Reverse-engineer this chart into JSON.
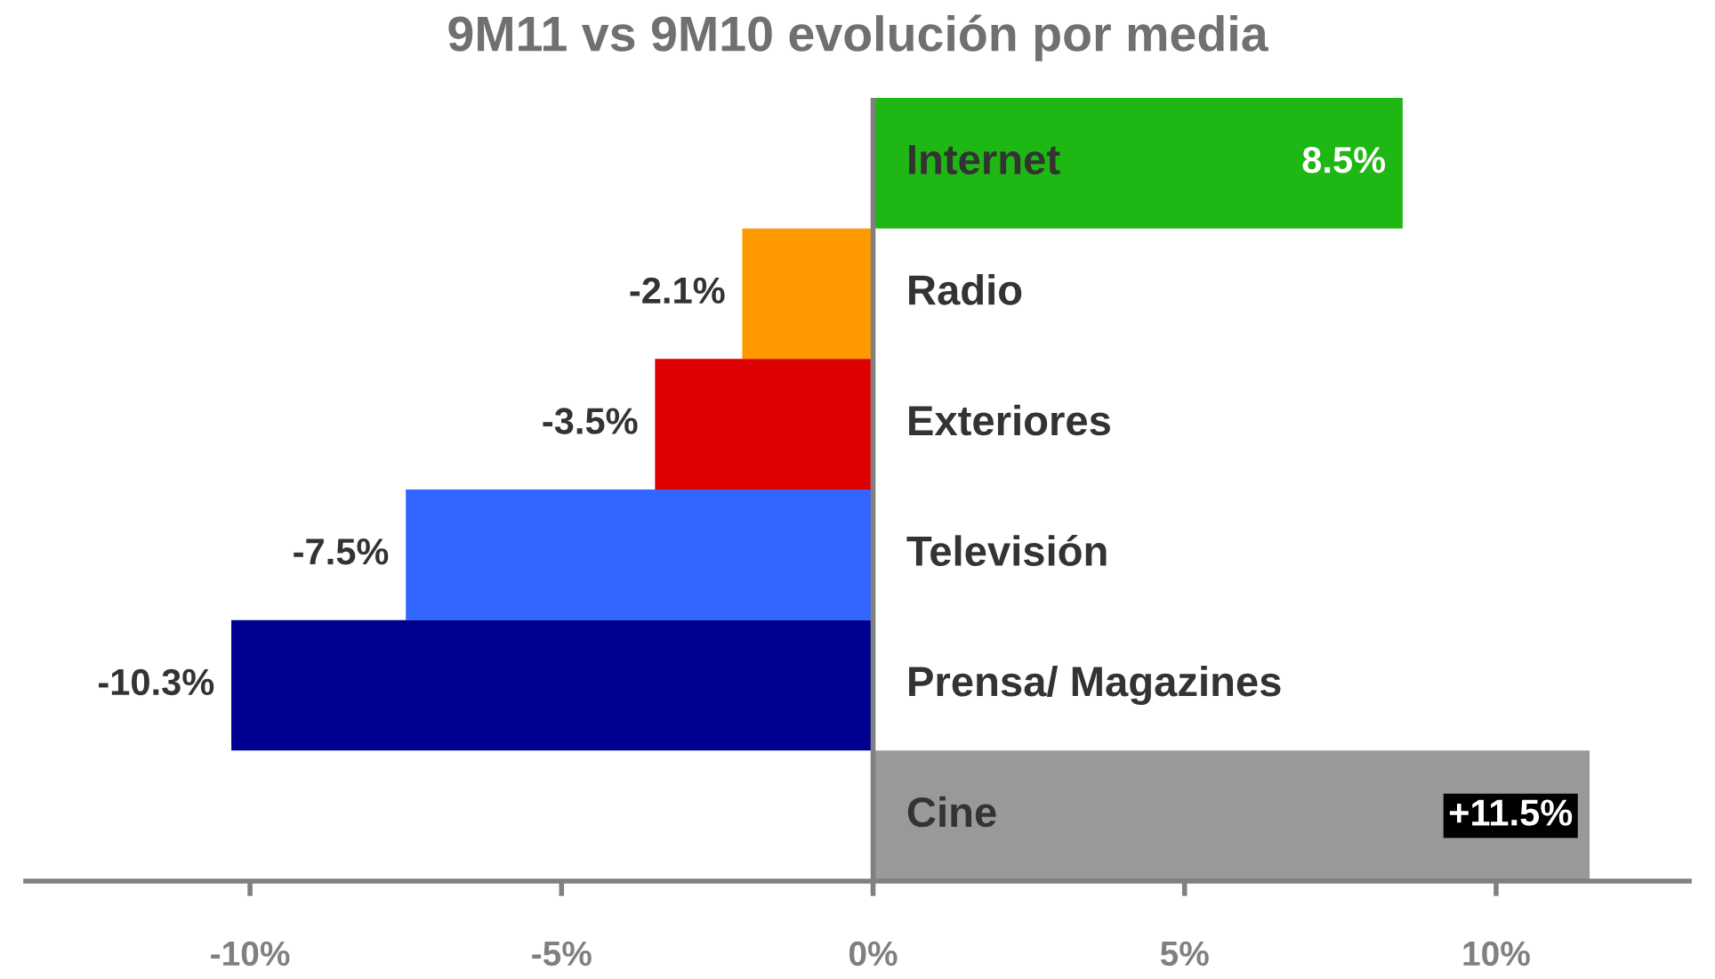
{
  "chart_data": {
    "type": "bar",
    "orientation": "horizontal",
    "title": "9M11 vs 9M10 evolución por media",
    "categories": [
      "Internet",
      "Radio",
      "Exteriores",
      "Televisión",
      "Prensa/ Magazines",
      "Cine"
    ],
    "values": [
      8.5,
      -2.1,
      -3.5,
      -7.5,
      -10.3,
      11.5
    ],
    "colors": [
      "#1fb714",
      "#ff9900",
      "#dd0000",
      "#3366ff",
      "#000090",
      "#999999"
    ],
    "value_labels": [
      "8.5%",
      "-2.1%",
      "-3.5%",
      "-7.5%",
      "-10.3%",
      "+11.5%"
    ],
    "xlim": [
      -13.6,
      13.1
    ],
    "xticks": [
      {
        "value": -10,
        "label": "-10%"
      },
      {
        "value": -5,
        "label": "-5%"
      },
      {
        "value": 0,
        "label": "0%"
      },
      {
        "value": 5,
        "label": "5%"
      },
      {
        "value": 10,
        "label": "10%"
      }
    ],
    "grid": false,
    "legend": false
  }
}
